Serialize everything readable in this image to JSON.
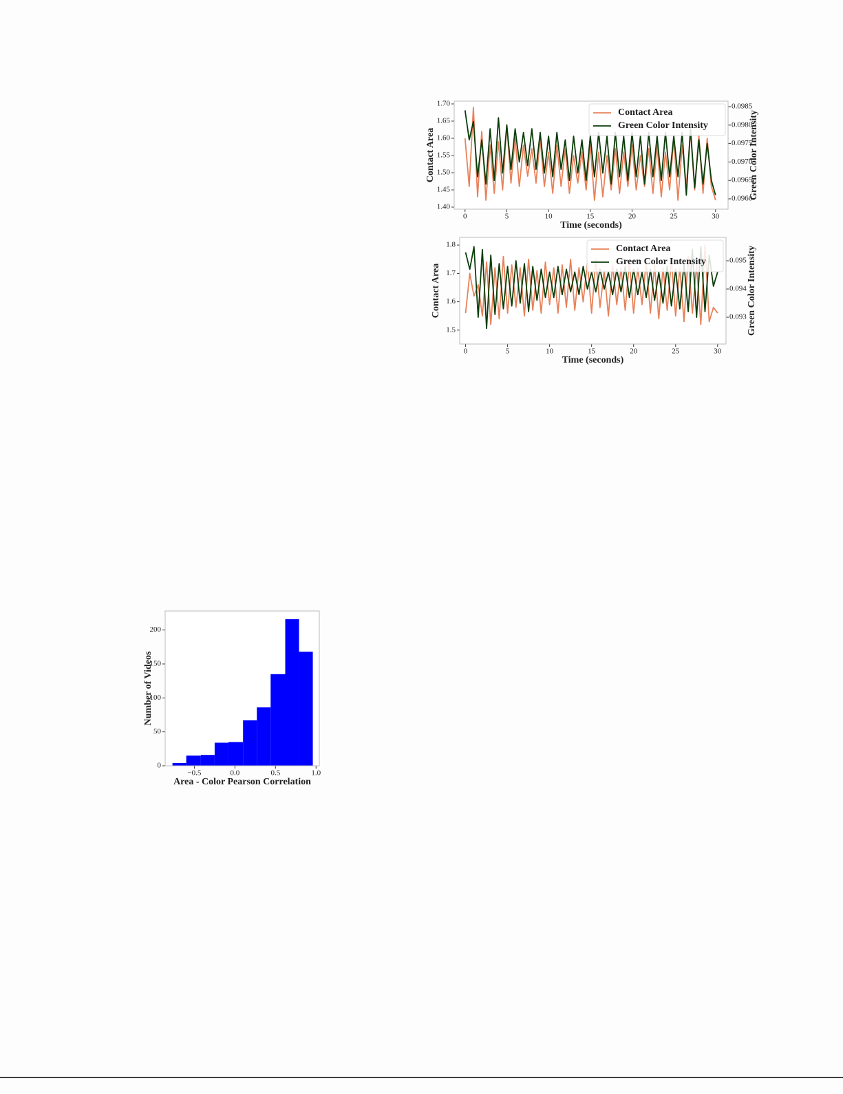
{
  "chart_data": [
    {
      "type": "line",
      "xlabel": "Time (seconds)",
      "ylabel": "Contact Area",
      "y2label": "Green Color Intensity",
      "legend": "upper right",
      "xlim": [
        -1.3,
        31.5
      ],
      "xticks": [
        0,
        5,
        10,
        15,
        20,
        25,
        30
      ],
      "ylim": [
        1.394,
        1.708
      ],
      "yticks": [
        {
          "value": 1.4,
          "label": "1.40"
        },
        1.45,
        {
          "value": 1.5,
          "label": "1.50"
        },
        1.55,
        {
          "value": 1.6,
          "label": "1.60"
        },
        1.65,
        {
          "value": 1.7,
          "label": "1.70"
        }
      ],
      "y2lim": [
        0.09572,
        0.09865
      ],
      "y2ticks": [
        {
          "value": 0.096,
          "label": "0.0960"
        },
        0.0965,
        {
          "value": 0.097,
          "label": "0.0970"
        },
        0.0975,
        {
          "value": 0.098,
          "label": "0.0980"
        },
        0.0985
      ],
      "x": [
        0,
        0.5,
        1,
        1.5,
        2,
        2.5,
        3,
        3.5,
        4,
        4.5,
        5,
        5.5,
        6,
        6.5,
        7,
        7.5,
        8,
        8.5,
        9,
        9.5,
        10,
        10.5,
        11,
        11.5,
        12,
        12.5,
        13,
        13.5,
        14,
        14.5,
        15,
        15.5,
        16,
        16.5,
        17,
        17.5,
        18,
        18.5,
        19,
        19.5,
        20,
        20.5,
        21,
        21.5,
        22,
        22.5,
        23,
        23.5,
        24,
        24.5,
        25,
        25.5,
        26,
        26.5,
        27,
        27.5,
        28,
        28.5,
        29,
        29.5,
        30
      ],
      "series": [
        {
          "name": "Contact Area",
          "color": "#e8825a",
          "values": [
            1.6,
            1.46,
            1.69,
            1.43,
            1.62,
            1.42,
            1.58,
            1.44,
            1.59,
            1.45,
            1.64,
            1.47,
            1.6,
            1.46,
            1.58,
            1.49,
            1.57,
            1.47,
            1.6,
            1.46,
            1.56,
            1.44,
            1.58,
            1.46,
            1.57,
            1.44,
            1.55,
            1.47,
            1.56,
            1.45,
            1.58,
            1.42,
            1.56,
            1.43,
            1.55,
            1.45,
            1.57,
            1.44,
            1.56,
            1.46,
            1.58,
            1.45,
            1.55,
            1.46,
            1.57,
            1.44,
            1.58,
            1.43,
            1.56,
            1.45,
            1.6,
            1.42,
            1.58,
            1.46,
            1.62,
            1.45,
            1.61,
            1.44,
            1.6,
            1.46,
            1.42
          ]
        },
        {
          "name": "Green Color Intensity",
          "color": "#0b3d0b",
          "axis": "y2",
          "values": [
            0.0984,
            0.0976,
            0.0981,
            0.0966,
            0.0976,
            0.0964,
            0.0979,
            0.0965,
            0.0982,
            0.0967,
            0.098,
            0.0968,
            0.0979,
            0.097,
            0.0978,
            0.0969,
            0.0979,
            0.0968,
            0.0978,
            0.0967,
            0.0977,
            0.0966,
            0.0978,
            0.0968,
            0.0976,
            0.0965,
            0.0977,
            0.0967,
            0.0976,
            0.0965,
            0.0977,
            0.0966,
            0.0978,
            0.0967,
            0.0977,
            0.0964,
            0.0978,
            0.0966,
            0.0977,
            0.0965,
            0.0978,
            0.0966,
            0.0977,
            0.0964,
            0.0978,
            0.0966,
            0.0977,
            0.0965,
            0.0978,
            0.0966,
            0.0977,
            0.0966,
            0.0978,
            0.0961,
            0.0979,
            0.0963,
            0.0976,
            0.0964,
            0.0975,
            0.0965,
            0.0961
          ]
        }
      ]
    },
    {
      "type": "line",
      "xlabel": "Time (seconds)",
      "ylabel": "Contact Area",
      "y2label": "Green Color Intensity",
      "legend": "upper right",
      "xlim": [
        -0.7,
        31.0
      ],
      "xticks": [
        0,
        5,
        10,
        15,
        20,
        25,
        30
      ],
      "ylim": [
        1.451,
        1.827
      ],
      "yticks": [
        1.5,
        1.6,
        1.7,
        1.8
      ],
      "y2lim": [
        0.09205,
        0.09583
      ],
      "y2ticks": [
        0.093,
        0.094,
        0.095
      ],
      "x": [
        0,
        0.5,
        1,
        1.5,
        2,
        2.5,
        3,
        3.5,
        4,
        4.5,
        5,
        5.5,
        6,
        6.5,
        7,
        7.5,
        8,
        8.5,
        9,
        9.5,
        10,
        10.5,
        11,
        11.5,
        12,
        12.5,
        13,
        13.5,
        14,
        14.5,
        15,
        15.5,
        16,
        16.5,
        17,
        17.5,
        18,
        18.5,
        19,
        19.5,
        20,
        20.5,
        21,
        21.5,
        22,
        22.5,
        23,
        23.5,
        24,
        24.5,
        25,
        25.5,
        26,
        26.5,
        27,
        27.5,
        28,
        28.5,
        29,
        29.5,
        30
      ],
      "series": [
        {
          "name": "Contact Area",
          "color": "#e8825a",
          "values": [
            1.56,
            1.7,
            1.62,
            1.66,
            1.55,
            1.74,
            1.52,
            1.72,
            1.54,
            1.76,
            1.56,
            1.73,
            1.58,
            1.72,
            1.55,
            1.75,
            1.57,
            1.71,
            1.56,
            1.74,
            1.59,
            1.72,
            1.56,
            1.73,
            1.58,
            1.75,
            1.57,
            1.72,
            1.6,
            1.74,
            1.56,
            1.75,
            1.58,
            1.71,
            1.55,
            1.73,
            1.59,
            1.72,
            1.57,
            1.74,
            1.56,
            1.72,
            1.59,
            1.74,
            1.56,
            1.73,
            1.54,
            1.72,
            1.57,
            1.75,
            1.55,
            1.72,
            1.53,
            1.76,
            1.56,
            1.73,
            1.52,
            1.8,
            1.53,
            1.58,
            1.56
          ]
        },
        {
          "name": "Green Color Intensity",
          "color": "#0b3d0b",
          "axis": "y2",
          "values": [
            0.0953,
            0.0947,
            0.0955,
            0.093,
            0.0954,
            0.0926,
            0.0952,
            0.0931,
            0.0949,
            0.0933,
            0.0948,
            0.0934,
            0.095,
            0.0935,
            0.0949,
            0.0932,
            0.0948,
            0.0936,
            0.0947,
            0.0937,
            0.0946,
            0.0937,
            0.0948,
            0.0938,
            0.0947,
            0.0939,
            0.0946,
            0.0938,
            0.0948,
            0.094,
            0.0946,
            0.0939,
            0.0947,
            0.094,
            0.0946,
            0.0938,
            0.0947,
            0.0939,
            0.0948,
            0.0937,
            0.0947,
            0.0938,
            0.0946,
            0.0937,
            0.0947,
            0.0936,
            0.0946,
            0.0935,
            0.0948,
            0.0934,
            0.0947,
            0.0933,
            0.0949,
            0.0932,
            0.0954,
            0.093,
            0.0955,
            0.0932,
            0.0952,
            0.0941,
            0.0946
          ]
        }
      ]
    },
    {
      "type": "histogram",
      "xlabel": "Area - Color Pearson Correlation",
      "ylabel": "Number of Videos",
      "color": "#0000ff",
      "bins": [
        -0.77,
        -0.6,
        -0.42,
        -0.25,
        -0.08,
        0.1,
        0.27,
        0.44,
        0.62,
        0.79,
        0.96
      ],
      "values": [
        4,
        15,
        16,
        34,
        35,
        67,
        86,
        135,
        216,
        168
      ],
      "xlim": [
        -0.86,
        1.04
      ],
      "xticks": [
        {
          "value": -0.5,
          "label": "−0.5"
        },
        {
          "value": 0,
          "label": "0.0"
        },
        0.5,
        {
          "value": 1,
          "label": "1.0"
        }
      ],
      "ylim": [
        0,
        228
      ],
      "yticks": [
        0,
        50,
        100,
        150,
        200
      ]
    }
  ]
}
